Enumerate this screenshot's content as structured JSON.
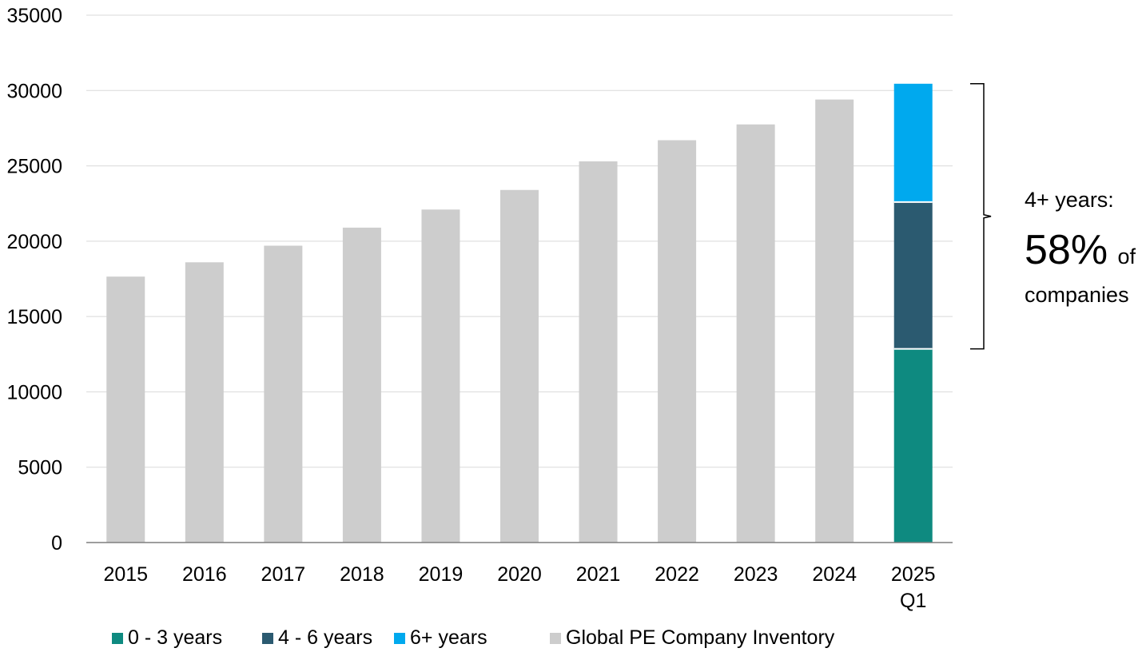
{
  "chart_data": {
    "type": "bar",
    "title": "",
    "xlabel": "",
    "ylabel": "",
    "ylim": [
      0,
      35000
    ],
    "y_ticks": [
      "0",
      "5000",
      "10000",
      "15000",
      "20000",
      "25000",
      "30000",
      "35000"
    ],
    "categories": [
      [
        "2015"
      ],
      [
        "2016"
      ],
      [
        "2017"
      ],
      [
        "2018"
      ],
      [
        "2019"
      ],
      [
        "2020"
      ],
      [
        "2021"
      ],
      [
        "2022"
      ],
      [
        "2023"
      ],
      [
        "2024"
      ],
      [
        "2025",
        "Q1"
      ]
    ],
    "grid": true,
    "legend_position": "bottom",
    "series": [
      {
        "name": "0 - 3 years",
        "color": "#0E8A80",
        "values": [
          null,
          null,
          null,
          null,
          null,
          null,
          null,
          null,
          null,
          null,
          12850
        ]
      },
      {
        "name": "4 - 6 years",
        "color": "#2B5A70",
        "values": [
          null,
          null,
          null,
          null,
          null,
          null,
          null,
          null,
          null,
          null,
          9750
        ]
      },
      {
        "name": "6+ years",
        "color": "#00A9EE",
        "values": [
          null,
          null,
          null,
          null,
          null,
          null,
          null,
          null,
          null,
          null,
          7850
        ]
      },
      {
        "name": "Global PE Company Inventory",
        "color": "#CDCDCD",
        "values": [
          17650,
          18600,
          19700,
          20900,
          22100,
          23400,
          25300,
          26700,
          27750,
          29400,
          null
        ]
      }
    ],
    "annotation": {
      "line1": "4+ years:",
      "big_value": "58%",
      "suffix": "of",
      "line3": "companies"
    }
  }
}
